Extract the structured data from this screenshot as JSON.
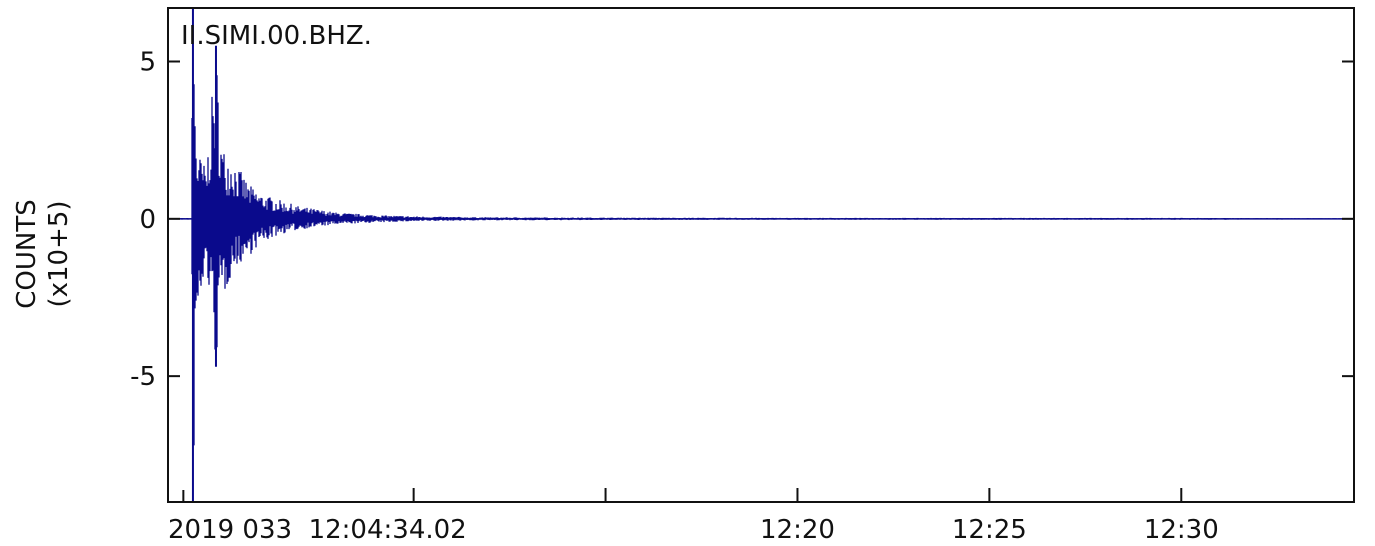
{
  "chart_data": {
    "type": "line",
    "station": "II.SIMI.00.BHZ.",
    "ylabel_line1": "COUNTS",
    "ylabel_line2": "(x10+5)",
    "y_unit_scale": 100000,
    "ylim": [
      -9.0,
      6.7
    ],
    "x_start_minute": 4.0,
    "x_end_minute": 34.5,
    "xlim_minutes": [
      3.6,
      34.5
    ],
    "y_ticks": [
      {
        "value": 5,
        "label": "5"
      },
      {
        "value": 0,
        "label": "0"
      },
      {
        "value": -5,
        "label": "-5"
      }
    ],
    "x_major_ticks": [
      {
        "minute": 10,
        "label": ""
      },
      {
        "minute": 15,
        "label": ""
      },
      {
        "minute": 20,
        "label": "12:20"
      },
      {
        "minute": 25,
        "label": "12:25"
      },
      {
        "minute": 30,
        "label": "12:30"
      }
    ],
    "x_start_label": "2019 033  12:04:34.02",
    "series_color": "#0a0a8c",
    "grid": false,
    "envelope": [
      {
        "t": 3.6,
        "max": 0.02,
        "min": -0.02
      },
      {
        "t": 4.2,
        "max": 0.03,
        "min": -0.03
      },
      {
        "t": 4.25,
        "max": 6.7,
        "min": -9.0
      },
      {
        "t": 4.35,
        "max": 2.2,
        "min": -3.8
      },
      {
        "t": 4.6,
        "max": 1.6,
        "min": -1.5
      },
      {
        "t": 4.85,
        "max": 5.5,
        "min": -4.7
      },
      {
        "t": 5.0,
        "max": 2.3,
        "min": -2.7
      },
      {
        "t": 5.3,
        "max": 1.9,
        "min": -1.6
      },
      {
        "t": 5.7,
        "max": 1.1,
        "min": -1.2
      },
      {
        "t": 6.0,
        "max": 0.8,
        "min": -0.8
      },
      {
        "t": 6.5,
        "max": 0.6,
        "min": -0.5
      },
      {
        "t": 7.0,
        "max": 0.4,
        "min": -0.35
      },
      {
        "t": 7.5,
        "max": 0.3,
        "min": -0.25
      },
      {
        "t": 8.0,
        "max": 0.2,
        "min": -0.18
      },
      {
        "t": 9.0,
        "max": 0.12,
        "min": -0.12
      },
      {
        "t": 10.0,
        "max": 0.08,
        "min": -0.08
      },
      {
        "t": 12.0,
        "max": 0.05,
        "min": -0.05
      },
      {
        "t": 15.0,
        "max": 0.04,
        "min": -0.04
      },
      {
        "t": 20.0,
        "max": 0.03,
        "min": -0.03
      },
      {
        "t": 25.0,
        "max": 0.03,
        "min": -0.03
      },
      {
        "t": 30.0,
        "max": 0.03,
        "min": -0.03
      },
      {
        "t": 34.5,
        "max": 0.02,
        "min": -0.02
      }
    ]
  }
}
